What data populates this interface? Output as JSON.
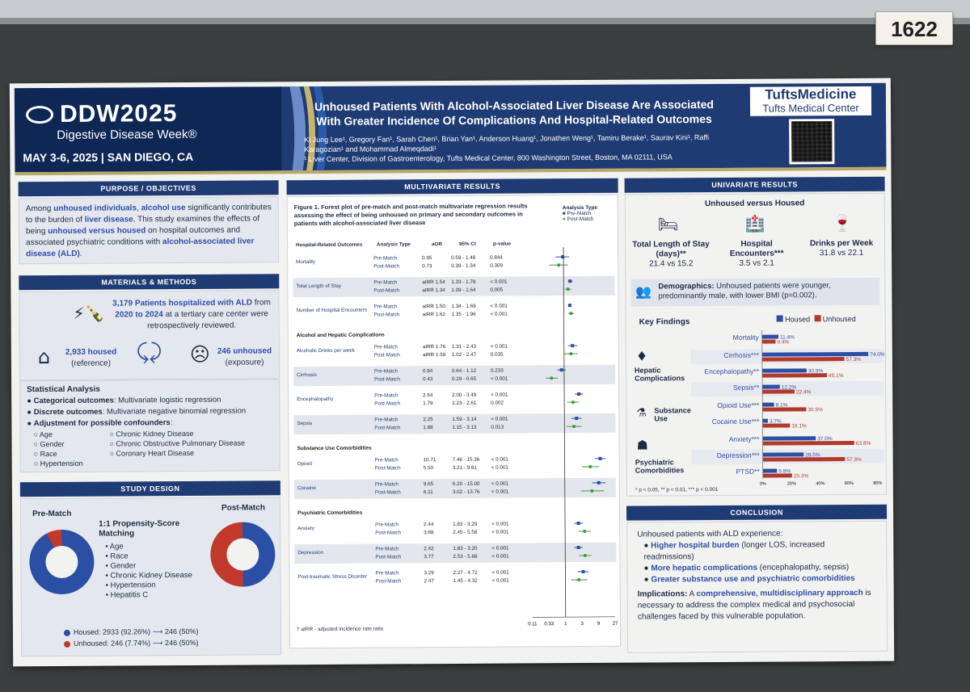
{
  "board_tag": "1622",
  "header": {
    "logo": "DDW2025",
    "logo_sub": "Digestive Disease Week®",
    "date_place": "MAY 3-6, 2025 | SAN DIEGO, CA",
    "title": "Unhoused Patients With Alcohol-Associated Liver Disease Are Associated With Greater Incidence Of Complications And Hospital-Related Outcomes",
    "authors": "Ki Jung Lee¹, Gregory Fan¹, Sarah Chen¹, Brian Yan¹, Anderson Huang¹, Jonathen Weng¹, Tamiru Berake¹, Saurav Kini¹, Raffi Karagozian¹ and Mohammad Almeqdadi¹",
    "affiliation": "¹ Liver Center, Division of Gastroenterology, Tufts Medical Center, 800 Washington Street, Boston, MA 02111, USA",
    "brand1": "TuftsMedicine",
    "brand2": "Tufts Medical Center"
  },
  "purpose": {
    "head": "PURPOSE / OBJECTIVES",
    "p1": "Among ",
    "h1": "unhoused individuals",
    "p2": ", ",
    "h2": "alcohol use",
    "p3": " significantly contributes to the burden of ",
    "h3": "liver disease",
    "p4": ". This study examines the effects of being ",
    "h4": "unhoused versus housed",
    "p5": " on hospital outcomes and associated psychiatric conditions with ",
    "h5": "alcohol-associated liver disease (ALD)",
    "p6": "."
  },
  "methods": {
    "head": "MATERIALS & METHODS",
    "patients": "3,179 Patients hospitalized with ALD",
    "from": " from ",
    "years": "2020 to 2024",
    "rest": " at a tertiary care center were retrospectively reviewed.",
    "housed": "2,933 housed",
    "housed_sub": "(reference)",
    "unhoused": "246 unhoused",
    "unhoused_sub": "(exposure)",
    "stat_head": "Statistical Analysis",
    "cat_b": "Categorical outcomes",
    "cat": ": Multivariate logistic regression",
    "disc_b": "Discrete outcomes",
    "disc": ": Multivariate negative binomial regression",
    "adj_b": "Adjustment for possible confounders",
    "adj": ":",
    "conf_left": [
      "Age",
      "Gender",
      "Race",
      "Hypertension"
    ],
    "conf_right": [
      "Chronic Kidney Disease",
      "Chronic Obstructive Pulmonary Disease",
      "Coronary Heart Disease"
    ]
  },
  "design": {
    "head": "STUDY DESIGN",
    "pre": "Pre-Match",
    "post": "Post-Match",
    "match_title": "1:1 Propensity-Score Matching",
    "match_items": [
      "Age",
      "Race",
      "Gender",
      "Chronic Kidney Disease",
      "Hypertension",
      "Hepatitis C"
    ],
    "legend_housed": "Housed: 2933 (92.26%)",
    "legend_housed_post": "246 (50%)",
    "legend_unhoused": "Unhoused: 246 (7.74%)",
    "legend_unhoused_post": "246 (50%)",
    "pre_housed_pct": 92.26,
    "post_housed_pct": 50,
    "housed_color": "#2c4fa6",
    "unhoused_color": "#c0392b"
  },
  "multivariate": {
    "head": "MULTIVARIATE RESULTS",
    "fig_title": "Figure 1. Forest plot of pre-match and post-match multivariate regression results assessing the effect of being unhoused on primary and secondary outcomes in patients with alcohol-associated liver disease",
    "legend_title": "Analysis Type",
    "legend_pre": "Pre-Match",
    "legend_post": "Post-Match",
    "cols": [
      "Hospital-Related Outcomes",
      "Analysis Type",
      "aOR",
      "95% CI",
      "p-value"
    ],
    "groups": [
      {
        "name": "",
        "rows": [
          {
            "label": "Mortality",
            "type": "",
            "vals": [
              [
                "Pre-Match",
                "0.95",
                "0.59 - 1.48",
                "0.844"
              ],
              [
                "Post-Match",
                "0.73",
                "0.39 - 1.34",
                "0.309"
              ]
            ],
            "est": [
              0.95,
              0.73
            ],
            "lo": [
              0.59,
              0.39
            ],
            "hi": [
              1.48,
              1.34
            ],
            "shade": false
          },
          {
            "label": "Total Length of Stay",
            "type": "",
            "vals": [
              [
                "Pre-Match",
                "aIRR 1.54",
                "1.33 - 1.78",
                "< 0.001"
              ],
              [
                "Post-Match",
                "aIRR 1.34",
                "1.09 - 1.64",
                "0.005"
              ]
            ],
            "est": [
              1.54,
              1.34
            ],
            "lo": [
              1.33,
              1.09
            ],
            "hi": [
              1.78,
              1.64
            ],
            "shade": true
          },
          {
            "label": "Number of Hospital Encounters",
            "type": "",
            "vals": [
              [
                "Pre-Match",
                "aIRR 1.50",
                "1.34 - 1.69",
                "< 0.001"
              ],
              [
                "Post-Match",
                "aIRR 1.62",
                "1.35 - 1.96",
                "< 0.001"
              ]
            ],
            "est": [
              1.5,
              1.62
            ],
            "lo": [
              1.34,
              1.35
            ],
            "hi": [
              1.69,
              1.96
            ],
            "shade": false
          }
        ]
      },
      {
        "name": "Alcohol and Hepatic Complications",
        "rows": [
          {
            "label": "Alcoholic Drinks per week",
            "vals": [
              [
                "Pre-Match",
                "aIRR 1.76",
                "1.31 - 2.43",
                "< 0.001"
              ],
              [
                "Post-Match",
                "aIRR 1.59",
                "1.02 - 2.47",
                "0.035"
              ]
            ],
            "est": [
              1.76,
              1.59
            ],
            "lo": [
              1.31,
              1.02
            ],
            "hi": [
              2.43,
              2.47
            ],
            "shade": false
          },
          {
            "label": "Cirrhosis",
            "vals": [
              [
                "Pre-Match",
                "0.84",
                "0.64 - 1.12",
                "0.233"
              ],
              [
                "Post-Match",
                "0.43",
                "0.29 - 0.65",
                "< 0.001"
              ]
            ],
            "est": [
              0.84,
              0.43
            ],
            "lo": [
              0.64,
              0.29
            ],
            "hi": [
              1.12,
              0.65
            ],
            "shade": true
          },
          {
            "label": "Encephalopathy",
            "vals": [
              [
                "Pre-Match",
                "2.64",
                "2.00 - 3.49",
                "< 0.001"
              ],
              [
                "Post-Match",
                "1.79",
                "1.23 - 2.61",
                "0.002"
              ]
            ],
            "est": [
              2.64,
              1.79
            ],
            "lo": [
              2.0,
              1.23
            ],
            "hi": [
              3.49,
              2.61
            ],
            "shade": false
          },
          {
            "label": "Sepsis",
            "vals": [
              [
                "Pre-Match",
                "2.25",
                "1.59 - 3.14",
                "< 0.001"
              ],
              [
                "Post-Match",
                "1.88",
                "1.15 - 3.13",
                "0.013"
              ]
            ],
            "est": [
              2.25,
              1.88
            ],
            "lo": [
              1.59,
              1.15
            ],
            "hi": [
              3.14,
              3.13
            ],
            "shade": true
          }
        ]
      },
      {
        "name": "Substance Use Comorbidities",
        "rows": [
          {
            "label": "Opioid",
            "vals": [
              [
                "Pre-Match",
                "10.71",
                "7.46 - 15.36",
                "< 0.001"
              ],
              [
                "Post-Match",
                "5.50",
                "3.21 - 9.81",
                "< 0.001"
              ]
            ],
            "est": [
              10.71,
              5.5
            ],
            "lo": [
              7.46,
              3.21
            ],
            "hi": [
              15.36,
              9.81
            ],
            "shade": false
          },
          {
            "label": "Cocaine",
            "vals": [
              [
                "Pre-Match",
                "9.65",
                "6.20 - 15.00",
                "< 0.001"
              ],
              [
                "Post-Match",
                "6.11",
                "3.02 - 13.76",
                "< 0.001"
              ]
            ],
            "est": [
              9.65,
              6.11
            ],
            "lo": [
              6.2,
              3.02
            ],
            "hi": [
              15.0,
              13.76
            ],
            "shade": true
          }
        ]
      },
      {
        "name": "Psychiatric Comorbidities",
        "rows": [
          {
            "label": "Anxiety",
            "vals": [
              [
                "Pre-Match",
                "2.44",
                "1.83 - 3.29",
                "< 0.001"
              ],
              [
                "Post-Match",
                "3.68",
                "2.45 - 5.58",
                "< 0.001"
              ]
            ],
            "est": [
              2.44,
              3.68
            ],
            "lo": [
              1.83,
              2.45
            ],
            "hi": [
              3.29,
              5.58
            ],
            "shade": false
          },
          {
            "label": "Depression",
            "vals": [
              [
                "Pre-Match",
                "2.42",
                "1.83 - 3.20",
                "< 0.001"
              ],
              [
                "Post-Match",
                "3.77",
                "2.53 - 5.68",
                "< 0.001"
              ]
            ],
            "est": [
              2.42,
              3.77
            ],
            "lo": [
              1.83,
              2.53
            ],
            "hi": [
              3.2,
              5.68
            ],
            "shade": true
          },
          {
            "label": "Post-traumatic Stress Disorder",
            "vals": [
              [
                "Pre-Match",
                "3.29",
                "2.27 - 4.72",
                "< 0.001"
              ],
              [
                "Post-Match",
                "2.47",
                "1.45 - 4.32",
                "< 0.001"
              ]
            ],
            "est": [
              3.29,
              2.47
            ],
            "lo": [
              2.27,
              1.45
            ],
            "hi": [
              4.72,
              4.32
            ],
            "shade": false
          }
        ]
      }
    ],
    "footnote": "† aIRR - adjusted incidence rate ratio",
    "axis_ticks": [
      "0.11",
      "0.33",
      "1",
      "3",
      "9",
      "27"
    ],
    "axis_tick_values": [
      0.11,
      0.33,
      1,
      3,
      9,
      27
    ],
    "pre_color": "#2c4fa6",
    "post_color": "#3f9a3f"
  },
  "univariate": {
    "head": "UNIVARIATE RESULTS",
    "sub": "Unhoused versus Housed",
    "stats": [
      {
        "label": "Total Length of Stay (days)**",
        "value": "21.4 vs 15.2"
      },
      {
        "label": "Hospital Encounters***",
        "value": "3.5 vs 2.1"
      },
      {
        "label": "Drinks per Week",
        "value": "31.8 vs 22.1"
      }
    ],
    "demo_b": "Demographics:",
    "demo": " Unhoused patients were younger, predominantly male, with lower BMI (p=0.002).",
    "kf_head": "Key Findings",
    "leg_housed": "Housed",
    "leg_unhoused": "Unhoused",
    "groups": [
      "Hepatic Complications",
      "Substance Use",
      "Psychiatric Comorbidities"
    ],
    "chart_data": {
      "type": "bar",
      "categories": [
        "Mortality",
        "Cirrhosis***",
        "Encephalopathy**",
        "Sepsis**",
        "Opioid Use***",
        "Cocaine Use***",
        "Anxiety***",
        "Depression***",
        "PTSD**"
      ],
      "series": [
        {
          "name": "Housed",
          "values": [
            11.4,
            74.0,
            30.9,
            12.2,
            8.1,
            3.7,
            37.0,
            28.5,
            9.8
          ]
        },
        {
          "name": "Unhoused",
          "values": [
            9.4,
            57.3,
            45.1,
            22.4,
            30.5,
            19.1,
            63.8,
            57.3,
            20.3
          ]
        }
      ],
      "labels_h": [
        "11.4%",
        "74.0%",
        "30.9%",
        "12.2%",
        "8.1%",
        "3.7%",
        "37.0%",
        "28.5%",
        "9.8%"
      ],
      "labels_u": [
        "9.4%",
        "57.3%",
        "45.1%",
        "22.4%",
        "30.5%",
        "19.1%",
        "63.8%",
        "57.3%",
        "20.3%"
      ],
      "xticks": [
        "0%",
        "20%",
        "40%",
        "60%",
        "80%"
      ],
      "xlim": [
        0,
        80
      ]
    },
    "sig": "* p < 0.05, ** p < 0.01, *** p < 0.001"
  },
  "conclusion": {
    "head": "CONCLUSION",
    "intro": "Unhoused patients with ALD experience:",
    "b1b": "Higher hospital burden",
    "b1": " (longer LOS, increased readmissions)",
    "b2b": "More hepatic complications",
    "b2": " (encephalopathy, sepsis)",
    "b3b": "Greater substance use and psychiatric comorbidities",
    "imp_b": "Implications:",
    "imp1": " A ",
    "imp_h": "comprehensive, multidisciplinary approach",
    "imp2": " is necessary to address the complex medical and psychosocial challenges faced by this vulnerable population."
  }
}
